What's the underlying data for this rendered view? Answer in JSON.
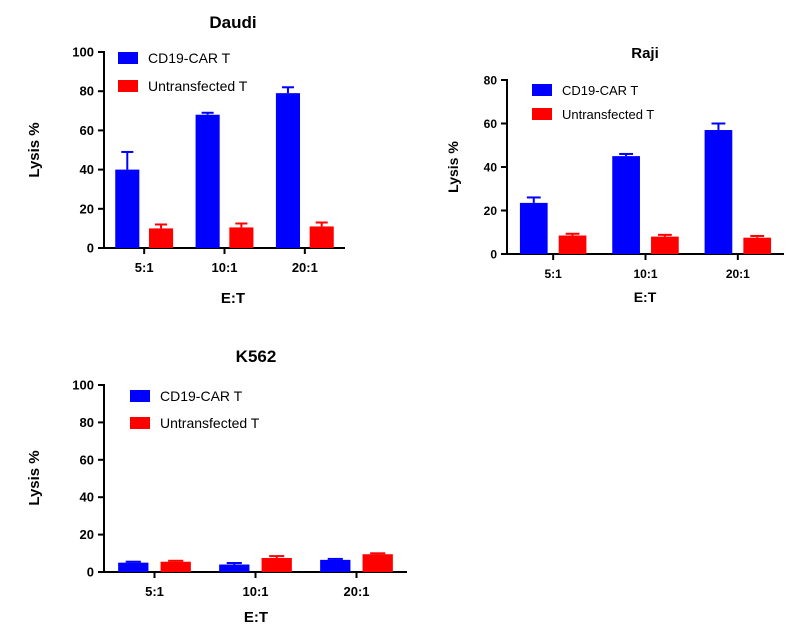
{
  "colors": {
    "car_t": "#0000ff",
    "untransfected": "#ff0000",
    "axis": "#000000"
  },
  "chart_data": [
    {
      "type": "bar",
      "title": "Daudi",
      "xlabel": "E:T",
      "ylabel": "Lysis %",
      "categories": [
        "5:1",
        "10:1",
        "20:1"
      ],
      "ylim": [
        0,
        100
      ],
      "yticks": [
        0,
        20,
        40,
        60,
        80,
        100
      ],
      "grid": false,
      "legend": "top-left",
      "series": [
        {
          "name": "CD19-CAR T",
          "values": [
            40,
            68,
            79
          ],
          "errors": [
            9,
            1,
            3
          ]
        },
        {
          "name": "Untransfected T",
          "values": [
            10,
            10.5,
            11
          ],
          "errors": [
            2,
            2,
            2
          ]
        }
      ]
    },
    {
      "type": "bar",
      "title": "Raji",
      "xlabel": "E:T",
      "ylabel": "Lysis %",
      "categories": [
        "5:1",
        "10:1",
        "20:1"
      ],
      "ylim": [
        0,
        80
      ],
      "yticks": [
        0,
        20,
        40,
        60,
        80
      ],
      "grid": false,
      "legend": "top-left",
      "series": [
        {
          "name": "CD19-CAR T",
          "values": [
            23.5,
            45,
            57
          ],
          "errors": [
            2.5,
            1,
            3
          ]
        },
        {
          "name": "Untransfected T",
          "values": [
            8.5,
            8,
            7.5
          ],
          "errors": [
            0.8,
            0.8,
            0.8
          ]
        }
      ]
    },
    {
      "type": "bar",
      "title": "K562",
      "xlabel": "E:T",
      "ylabel": "Lysis %",
      "categories": [
        "5:1",
        "10:1",
        "20:1"
      ],
      "ylim": [
        0,
        100
      ],
      "yticks": [
        0,
        20,
        40,
        60,
        80,
        100
      ],
      "grid": false,
      "legend": "top-left",
      "series": [
        {
          "name": "CD19-CAR T",
          "values": [
            5,
            4,
            6.5
          ],
          "errors": [
            0.5,
            0.8,
            0.5
          ]
        },
        {
          "name": "Untransfected T",
          "values": [
            5.5,
            7.5,
            9.5
          ],
          "errors": [
            0.5,
            1,
            0.5
          ]
        }
      ]
    }
  ]
}
